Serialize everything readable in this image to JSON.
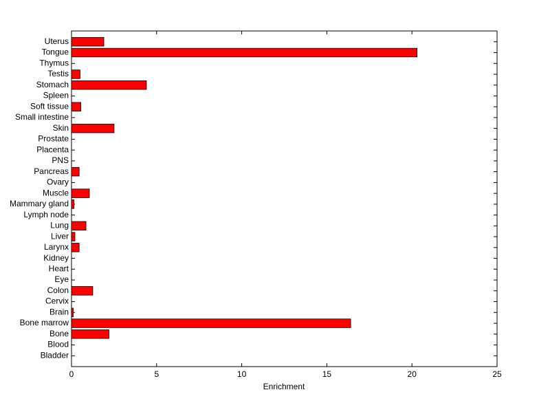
{
  "chart_data": {
    "type": "barh",
    "xlabel": "Enrichment",
    "categories": [
      "Uterus",
      "Tongue",
      "Thymus",
      "Testis",
      "Stomach",
      "Spleen",
      "Soft tissue",
      "Small intestine",
      "Skin",
      "Prostate",
      "Placenta",
      "PNS",
      "Pancreas",
      "Ovary",
      "Muscle",
      "Mammary gland",
      "Lymph node",
      "Lung",
      "Liver",
      "Larynx",
      "Kidney",
      "Heart",
      "Eye",
      "Colon",
      "Cervix",
      "Brain",
      "Bone marrow",
      "Bone",
      "Blood",
      "Bladder"
    ],
    "values": [
      1.9,
      20.3,
      0,
      0.5,
      4.4,
      0,
      0.55,
      0,
      2.5,
      0,
      0,
      0,
      0.45,
      0,
      1.05,
      0.15,
      0,
      0.85,
      0.2,
      0.45,
      0,
      0,
      0,
      1.25,
      0,
      0.1,
      16.4,
      2.2,
      0,
      0
    ],
    "color": "#ff0000",
    "xlim": [
      0,
      25
    ],
    "xticks": [
      0,
      5,
      10,
      15,
      20,
      25
    ]
  }
}
